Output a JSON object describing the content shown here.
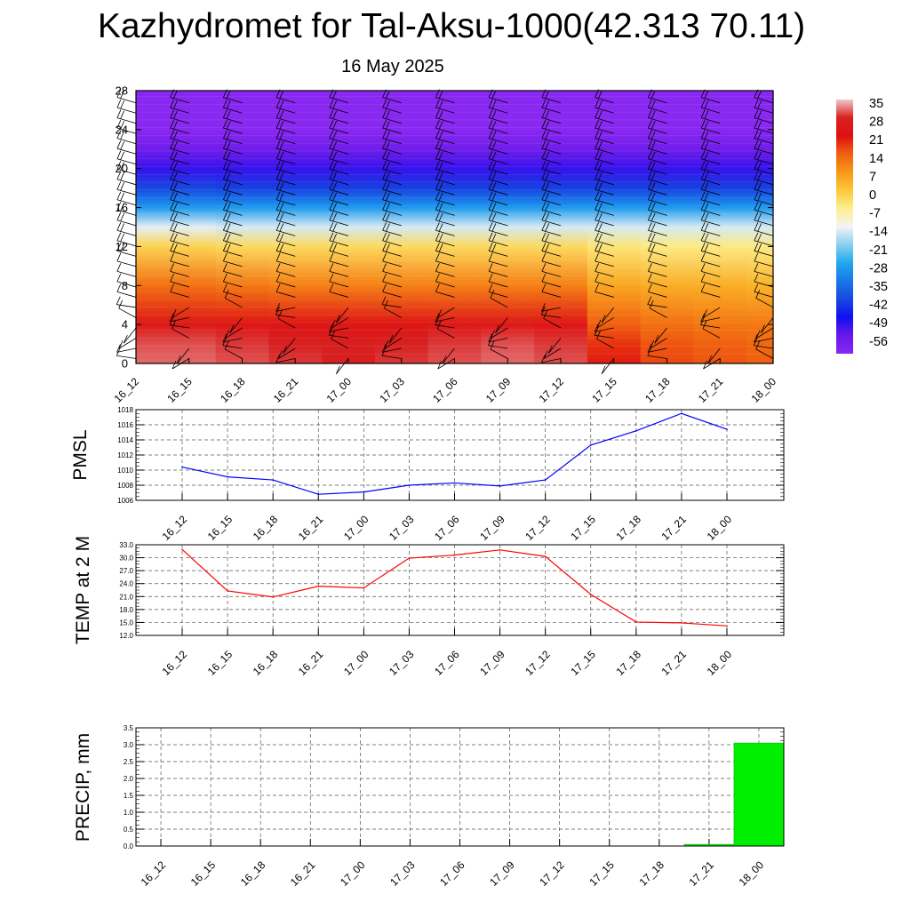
{
  "title": "Kazhydromet for Tal-Aksu-1000(42.313 70.11)",
  "subtitle": "16 May 2025",
  "time_labels": [
    "16_12",
    "16_15",
    "16_18",
    "16_21",
    "17_00",
    "17_03",
    "17_06",
    "17_09",
    "17_12",
    "17_15",
    "17_18",
    "17_21",
    "18_00"
  ],
  "colorbar": {
    "labels": [
      "35",
      "28",
      "21",
      "14",
      "7",
      "0",
      "-7",
      "-14",
      "-21",
      "-28",
      "-35",
      "-42",
      "-49",
      "-56"
    ],
    "stops": [
      {
        "value": 35,
        "color": "#f0c8c8"
      },
      {
        "value": 28,
        "color": "#d82020"
      },
      {
        "value": 21,
        "color": "#e01010"
      },
      {
        "value": 14,
        "color": "#f06010"
      },
      {
        "value": 7,
        "color": "#f89818"
      },
      {
        "value": 0,
        "color": "#fcc838"
      },
      {
        "value": -7,
        "color": "#fcf090"
      },
      {
        "value": -14,
        "color": "#f4f4f4"
      },
      {
        "value": -21,
        "color": "#88d0f0"
      },
      {
        "value": -28,
        "color": "#20a8f0"
      },
      {
        "value": -35,
        "color": "#1878e8"
      },
      {
        "value": -42,
        "color": "#1848e0"
      },
      {
        "value": -49,
        "color": "#1010f0"
      },
      {
        "value": -56,
        "color": "#6818e8"
      },
      {
        "value": -63,
        "color": "#8828f0"
      }
    ]
  },
  "chart_data": [
    {
      "type": "heatmap",
      "title": "",
      "xlabel": "",
      "ylabel": "",
      "x": [
        "16_12",
        "16_15",
        "16_18",
        "16_21",
        "17_00",
        "17_03",
        "17_06",
        "17_09",
        "17_12",
        "17_15",
        "17_18",
        "17_21",
        "18_00"
      ],
      "y_ticks": [
        0,
        4,
        8,
        12,
        16,
        20,
        24,
        28
      ],
      "ylim": [
        0,
        28
      ],
      "description_layers": [
        {
          "y": 0,
          "values": [
            31,
            31,
            30,
            29,
            28,
            29,
            30,
            31,
            30,
            20,
            16,
            15,
            14
          ]
        },
        {
          "y": 2,
          "values": [
            30,
            30,
            29,
            28,
            27,
            28,
            29,
            30,
            29,
            18,
            15,
            14,
            13
          ]
        },
        {
          "y": 4,
          "values": [
            24,
            24,
            23,
            23,
            23,
            23,
            24,
            24,
            23,
            14,
            12,
            11,
            11
          ]
        },
        {
          "y": 8,
          "values": [
            12,
            12,
            11,
            10,
            10,
            10,
            10,
            10,
            10,
            5,
            4,
            4,
            3
          ]
        },
        {
          "y": 12,
          "values": [
            -2,
            -2,
            -3,
            -3,
            -3,
            -3,
            -3,
            -3,
            -3,
            -5,
            -6,
            -6,
            -6
          ]
        },
        {
          "y": 14,
          "values": [
            -15,
            -15,
            -16,
            -16,
            -16,
            -16,
            -16,
            -16,
            -16,
            -16,
            -16,
            -16,
            -16
          ]
        },
        {
          "y": 16,
          "values": [
            -30,
            -30,
            -30,
            -30,
            -30,
            -30,
            -30,
            -30,
            -30,
            -30,
            -30,
            -30,
            -30
          ]
        },
        {
          "y": 18,
          "values": [
            -42,
            -42,
            -43,
            -43,
            -43,
            -43,
            -43,
            -43,
            -43,
            -43,
            -43,
            -43,
            -43
          ]
        },
        {
          "y": 20,
          "values": [
            -52,
            -52,
            -52,
            -52,
            -52,
            -52,
            -52,
            -52,
            -52,
            -52,
            -52,
            -52,
            -52
          ]
        },
        {
          "y": 22,
          "values": [
            -58,
            -58,
            -58,
            -58,
            -58,
            -58,
            -58,
            -58,
            -58,
            -58,
            -58,
            -58,
            -58
          ]
        },
        {
          "y": 24,
          "values": [
            -63,
            -63,
            -63,
            -63,
            -63,
            -63,
            -63,
            -63,
            -63,
            -63,
            -63,
            -63,
            -63
          ]
        },
        {
          "y": 28,
          "values": [
            -63,
            -63,
            -63,
            -63,
            -63,
            -63,
            -63,
            -63,
            -63,
            -63,
            -63,
            -63,
            -63
          ]
        }
      ]
    },
    {
      "type": "line",
      "title": "",
      "xlabel": "",
      "ylabel": "PMSL",
      "x": [
        "16_12",
        "16_15",
        "16_18",
        "16_21",
        "17_00",
        "17_03",
        "17_06",
        "17_09",
        "17_12",
        "17_15",
        "17_18",
        "17_21",
        "18_00"
      ],
      "series": [
        {
          "color": "#0000ff",
          "values": [
            1010.4,
            1009.1,
            1008.7,
            1006.8,
            1007.1,
            1008.0,
            1008.3,
            1007.9,
            1008.7,
            1013.3,
            1015.2,
            1017.5,
            1015.4
          ]
        }
      ],
      "ylim": [
        1006,
        1018
      ],
      "y_ticks": [
        "1006",
        "1008",
        "1010",
        "1012",
        "1014",
        "1016",
        "1018"
      ],
      "grid": true
    },
    {
      "type": "line",
      "title": "",
      "xlabel": "",
      "ylabel": "TEMP at 2 M",
      "x": [
        "16_12",
        "16_15",
        "16_18",
        "16_21",
        "17_00",
        "17_03",
        "17_06",
        "17_09",
        "17_12",
        "17_15",
        "17_18",
        "17_21",
        "18_00"
      ],
      "series": [
        {
          "color": "#ff0000",
          "values": [
            31.9,
            22.3,
            20.9,
            23.4,
            23.0,
            29.9,
            30.6,
            31.8,
            30.3,
            21.5,
            15.1,
            14.9,
            14.2
          ]
        }
      ],
      "ylim": [
        12,
        33
      ],
      "y_ticks": [
        "12.0",
        "15.0",
        "18.0",
        "21.0",
        "24.0",
        "27.0",
        "30.0",
        "33.0"
      ],
      "grid": true
    },
    {
      "type": "bar",
      "title": "",
      "xlabel": "",
      "ylabel": "PRECIP, mm",
      "categories": [
        "16_12",
        "16_15",
        "16_18",
        "16_21",
        "17_00",
        "17_03",
        "17_06",
        "17_09",
        "17_12",
        "17_15",
        "17_18",
        "17_21",
        "18_00"
      ],
      "series": [
        {
          "color": "#00ee00",
          "values": [
            0,
            0,
            0,
            0,
            0,
            0,
            0,
            0,
            0,
            0,
            0,
            0.05,
            3.05
          ]
        }
      ],
      "ylim": [
        0,
        3.5
      ],
      "y_ticks": [
        "0.0",
        "0.5",
        "1.0",
        "1.5",
        "2.0",
        "2.5",
        "3.0",
        "3.5"
      ],
      "grid": true
    }
  ]
}
